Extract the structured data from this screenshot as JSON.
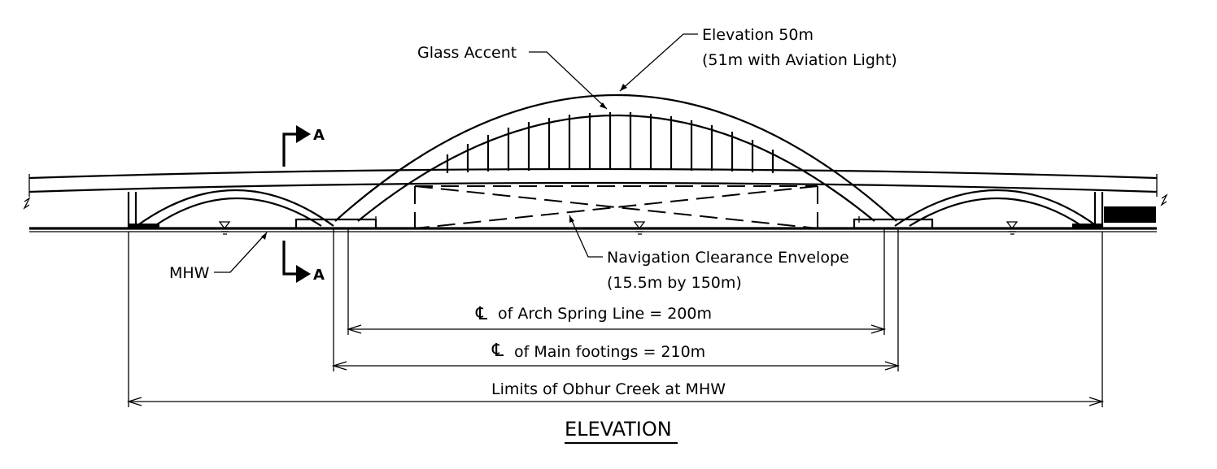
{
  "labels": {
    "glass_accent": "Glass Accent",
    "elevation_line1": "Elevation 50m",
    "elevation_line2": "(51m  with Aviation Light)",
    "section_letter_top": "A",
    "section_letter_bottom": "A",
    "mhw": "MHW",
    "nav_line1": "Navigation Clearance Envelope",
    "nav_line2": "(15.5m  by 150m)"
  },
  "dimensions": {
    "arch_spring_line": "of Arch Spring Line  =   200m",
    "main_footings": "of Main footings  =   210m",
    "creek_limits": "Limits of Obhur Creek at MHW"
  },
  "centerline_symbol": "℄",
  "title": "ELEVATION"
}
